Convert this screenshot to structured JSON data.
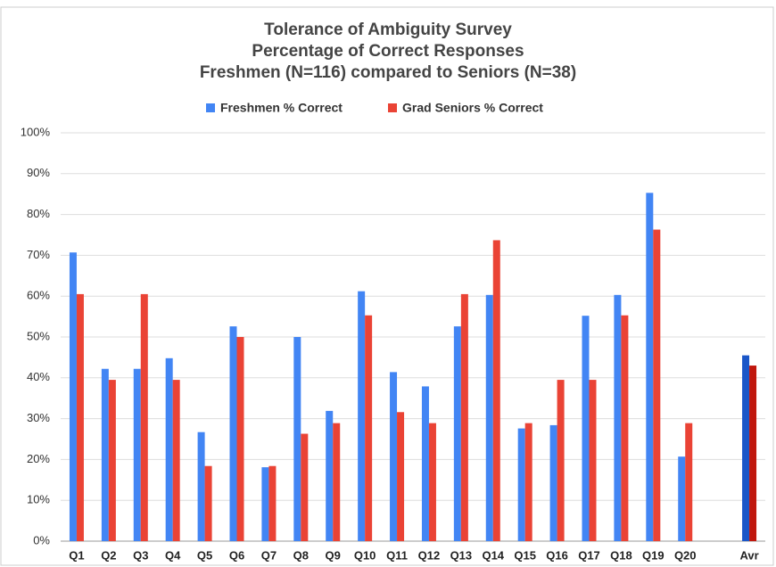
{
  "chart_data": {
    "type": "bar",
    "title": "Tolerance of Ambiguity Survey",
    "subtitle": [
      "Percentage of Correct Responses",
      "Freshmen (N=116) compared to Seniors (N=38)"
    ],
    "categories": [
      "Q1",
      "Q2",
      "Q3",
      "Q4",
      "Q5",
      "Q6",
      "Q7",
      "Q8",
      "Q9",
      "Q10",
      "Q11",
      "Q12",
      "Q13",
      "Q14",
      "Q15",
      "Q16",
      "Q17",
      "Q18",
      "Q19",
      "Q20",
      null,
      "Avr"
    ],
    "series": [
      {
        "name": "Freshmen % Correct",
        "color": "#4285f4",
        "last_color": "#1a56c8",
        "values": [
          70.7,
          42.2,
          42.2,
          44.8,
          26.7,
          52.6,
          18.1,
          50.0,
          31.9,
          61.2,
          41.4,
          37.9,
          52.6,
          60.3,
          27.6,
          28.4,
          55.2,
          60.3,
          85.3,
          20.7,
          null,
          45.5
        ]
      },
      {
        "name": "Grad Seniors % Correct",
        "color": "#ea4335",
        "last_color": "#c0170d",
        "values": [
          60.5,
          39.5,
          60.5,
          39.5,
          18.4,
          50.0,
          18.4,
          26.3,
          28.9,
          55.3,
          31.6,
          28.9,
          60.5,
          73.7,
          28.9,
          39.5,
          39.5,
          55.3,
          76.3,
          28.9,
          null,
          43.0
        ]
      }
    ],
    "ylim": [
      0,
      100
    ],
    "yticks": [
      {
        "value": 0,
        "label": "0%"
      },
      {
        "value": 10,
        "label": "10%"
      },
      {
        "value": 20,
        "label": "20%"
      },
      {
        "value": 30,
        "label": "30%"
      },
      {
        "value": 40,
        "label": "40%"
      },
      {
        "value": 50,
        "label": "50%"
      },
      {
        "value": 60,
        "label": "60%"
      },
      {
        "value": 70,
        "label": "70%"
      },
      {
        "value": 80,
        "label": "80%"
      },
      {
        "value": 90,
        "label": "90%"
      },
      {
        "value": 100,
        "label": "100%"
      }
    ],
    "grid": true,
    "legend": "top"
  }
}
